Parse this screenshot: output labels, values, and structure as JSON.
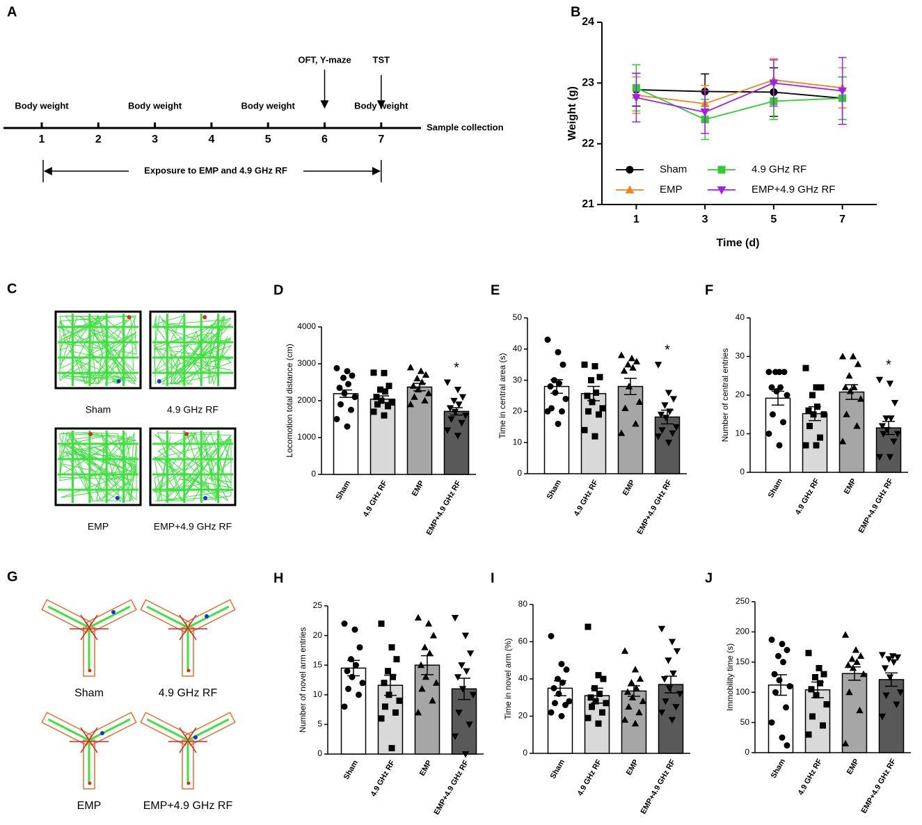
{
  "timeline": {
    "panel": "A",
    "days": [
      1,
      2,
      3,
      4,
      5,
      6,
      7
    ],
    "top_labels": [
      "Body weight",
      null,
      "Body weight",
      null,
      "Body weight",
      null,
      "Body weight"
    ],
    "arrows": [
      null,
      null,
      null,
      null,
      null,
      "OFT, Y-maze",
      "TST"
    ],
    "end_label": "Sample collection",
    "exposure": "Exposure to EMP and 4.9 GHz RF"
  },
  "open_field": {
    "panel": "C",
    "labels": [
      "Sham",
      "4.9 GHz RF",
      "EMP",
      "EMP+4.9 GHz RF"
    ]
  },
  "y_maze": {
    "panel": "G",
    "labels": [
      "Sham",
      "4.9 GHz RF",
      "EMP",
      "EMP+4.9 GHz RF"
    ]
  },
  "chart_data": [
    {
      "type": "line",
      "panel": "B",
      "xlabel": "Time (d)",
      "ylabel": "Weight (g)",
      "x": [
        1,
        3,
        5,
        7
      ],
      "xlim": [
        0,
        8
      ],
      "xticks": [
        1,
        3,
        5,
        7
      ],
      "ylim": [
        21,
        24
      ],
      "yticks": [
        21,
        22,
        23,
        24
      ],
      "series": [
        {
          "name": "Sham",
          "color": "#000000",
          "marker": "circle",
          "values": [
            22.89,
            22.86,
            22.85,
            22.75
          ],
          "errors": [
            0.27,
            0.29,
            0.4,
            0.35
          ]
        },
        {
          "name": "EMP",
          "color": "#f5841f",
          "marker": "triangle",
          "values": [
            22.8,
            22.66,
            23.05,
            22.92
          ],
          "errors": [
            0.3,
            0.3,
            0.35,
            0.33
          ]
        },
        {
          "name": "4.9 GHz RF",
          "color": "#2ecc2e",
          "marker": "square",
          "values": [
            22.92,
            22.4,
            22.7,
            22.75
          ],
          "errors": [
            0.38,
            0.33,
            0.3,
            0.35
          ]
        },
        {
          "name": "EMP+4.9 GHz RF",
          "color": "#a020f0",
          "marker": "triangle-down",
          "values": [
            22.76,
            22.52,
            23.0,
            22.87
          ],
          "errors": [
            0.4,
            0.35,
            0.38,
            0.55
          ]
        }
      ]
    },
    {
      "type": "bar",
      "panel": "D",
      "ylabel": "Locomotion total distance (cm)",
      "categories": [
        "Sham",
        "4.9 GHz RF",
        "EMP",
        "EMP+4.9 GHz RF"
      ],
      "colors": [
        "#ffffff",
        "#d9d9d9",
        "#a6a6a6",
        "#595959"
      ],
      "markers": [
        "circle",
        "square",
        "triangle",
        "triangle-down"
      ],
      "values": [
        2190,
        2040,
        2370,
        1710
      ],
      "errors": [
        100,
        90,
        100,
        100
      ],
      "points": [
        [
          2880,
          2800,
          2680,
          2620,
          2450,
          2350,
          2200,
          2100,
          1900,
          1750,
          1500,
          1300
        ],
        [
          2760,
          2750,
          2400,
          2300,
          2250,
          2100,
          2000,
          1950,
          1900,
          1850,
          1700,
          1600
        ],
        [
          2900,
          2800,
          2700,
          2600,
          2500,
          2400,
          2300,
          2200,
          2100,
          2000,
          1900
        ],
        [
          2500,
          2300,
          2100,
          2000,
          1900,
          1800,
          1700,
          1600,
          1500,
          1400,
          1200,
          1050
        ]
      ],
      "significance": [
        null,
        null,
        null,
        "*"
      ],
      "significance_color": "#e02020",
      "ylim": [
        0,
        4000
      ],
      "yticks": [
        0,
        1000,
        2000,
        3000,
        4000
      ]
    },
    {
      "type": "bar",
      "panel": "E",
      "ylabel": "Time in central area (s)",
      "categories": [
        "Sham",
        "4.9 GHz RF",
        "EMP",
        "EMP+4.9 GHz RF"
      ],
      "colors": [
        "#ffffff",
        "#d9d9d9",
        "#a6a6a6",
        "#595959"
      ],
      "markers": [
        "circle",
        "square",
        "triangle",
        "triangle-down"
      ],
      "values": [
        28,
        25.7,
        28,
        18.2
      ],
      "errors": [
        2.2,
        2.3,
        2.6,
        2.2
      ],
      "points": [
        [
          43,
          39,
          35,
          30,
          29,
          28,
          26,
          24,
          21,
          20,
          20,
          16
        ],
        [
          35,
          34.5,
          31,
          30,
          26,
          25,
          23,
          21,
          20,
          19,
          14,
          12
        ],
        [
          38,
          37,
          36,
          35,
          34,
          33,
          28,
          23,
          21,
          16,
          13
        ],
        [
          35,
          26,
          24,
          22,
          20,
          19,
          18,
          15,
          14,
          13,
          12,
          10
        ]
      ],
      "significance": [
        null,
        null,
        null,
        "*"
      ],
      "significance_color": "#e02020",
      "ylim": [
        0,
        50
      ],
      "yticks": [
        0,
        10,
        20,
        30,
        40,
        50
      ]
    },
    {
      "type": "bar",
      "panel": "F",
      "ylabel": "Number of central entries",
      "categories": [
        "Sham",
        "4.9 GHz RF",
        "EMP",
        "EMP+4.9 GHz RF"
      ],
      "colors": [
        "#ffffff",
        "#d9d9d9",
        "#a6a6a6",
        "#595959"
      ],
      "markers": [
        "circle",
        "square",
        "triangle",
        "triangle-down"
      ],
      "values": [
        19.2,
        15.2,
        20.8,
        11.5
      ],
      "errors": [
        1.8,
        1.8,
        1.9,
        1.7
      ],
      "points": [
        [
          26,
          26,
          26,
          26,
          22,
          22,
          21,
          20,
          15,
          13,
          10,
          7
        ],
        [
          27,
          22,
          22,
          20,
          17,
          16,
          15,
          15,
          12,
          9,
          7,
          7
        ],
        [
          30,
          30,
          28,
          25,
          22,
          22,
          21,
          19,
          15,
          12,
          8
        ],
        [
          24,
          23,
          18,
          14,
          14,
          12,
          11,
          10,
          10,
          8,
          4,
          4
        ]
      ],
      "significance": [
        null,
        null,
        null,
        "*"
      ],
      "significance_color": "#e02020",
      "ylim": [
        0,
        40
      ],
      "yticks": [
        0,
        10,
        20,
        30,
        40
      ]
    },
    {
      "type": "bar",
      "panel": "H",
      "ylabel": "Number of novel arm entries",
      "categories": [
        "Sham",
        "4.9 GHz RF",
        "EMP",
        "EMP+4.9 GHz RF"
      ],
      "colors": [
        "#ffffff",
        "#d9d9d9",
        "#a6a6a6",
        "#595959"
      ],
      "markers": [
        "circle",
        "square",
        "triangle",
        "triangle-down"
      ],
      "values": [
        14.5,
        11.6,
        15,
        11
      ],
      "errors": [
        1.3,
        1.7,
        1.6,
        1.8
      ],
      "points": [
        [
          22,
          21,
          18,
          16,
          15,
          14,
          13,
          12,
          11,
          10,
          8
        ],
        [
          22,
          18,
          16,
          14,
          13,
          12,
          10,
          9,
          8,
          7,
          6,
          1
        ],
        [
          23,
          22,
          20,
          18,
          17,
          15,
          13,
          12,
          11,
          9,
          7
        ],
        [
          23,
          20,
          17,
          15,
          14,
          13,
          11,
          10,
          7,
          5,
          3,
          0
        ]
      ],
      "ylim": [
        0,
        25
      ],
      "yticks": [
        0,
        5,
        10,
        15,
        20,
        25
      ]
    },
    {
      "type": "bar",
      "panel": "I",
      "ylabel": "Time in novel arm (%)",
      "categories": [
        "Sham",
        "4.9 GHz RF",
        "EMP",
        "EMP+4.9 GHz RF"
      ],
      "colors": [
        "#ffffff",
        "#d9d9d9",
        "#a6a6a6",
        "#595959"
      ],
      "markers": [
        "circle",
        "square",
        "triangle",
        "triangle-down"
      ],
      "values": [
        35,
        31,
        33.5,
        37
      ],
      "errors": [
        4,
        4,
        2.8,
        4.5
      ],
      "points": [
        [
          63,
          48,
          45,
          40,
          38,
          35,
          32,
          28,
          27,
          26,
          22,
          20
        ],
        [
          68,
          42,
          40,
          35,
          32,
          30,
          28,
          27,
          25,
          22,
          19,
          16
        ],
        [
          55,
          45,
          40,
          38,
          35,
          33,
          30,
          28,
          25,
          22,
          18,
          16
        ],
        [
          67,
          60,
          55,
          50,
          43,
          40,
          35,
          32,
          28,
          25,
          22,
          18
        ]
      ],
      "ylim": [
        0,
        80
      ],
      "yticks": [
        0,
        20,
        40,
        60,
        80
      ]
    },
    {
      "type": "bar",
      "panel": "J",
      "ylabel": "Immobility time (s)",
      "categories": [
        "Sham",
        "4.9 GHz RF",
        "EMP",
        "EMP+4.9 GHz RF"
      ],
      "colors": [
        "#ffffff",
        "#d9d9d9",
        "#a6a6a6",
        "#595959"
      ],
      "markers": [
        "circle",
        "square",
        "triangle",
        "triangle-down"
      ],
      "values": [
        112,
        104,
        131,
        121
      ],
      "errors": [
        17,
        13,
        11,
        11
      ],
      "points": [
        [
          187,
          180,
          170,
          160,
          150,
          130,
          120,
          110,
          100,
          75,
          50,
          25,
          12
        ],
        [
          165,
          140,
          130,
          125,
          115,
          105,
          95,
          80,
          60,
          45,
          30
        ],
        [
          195,
          170,
          160,
          155,
          150,
          145,
          140,
          130,
          100,
          70,
          15
        ],
        [
          162,
          160,
          158,
          155,
          150,
          140,
          125,
          100,
          95,
          80,
          60
        ]
      ],
      "ylim": [
        0,
        250
      ],
      "yticks": [
        0,
        50,
        100,
        150,
        200,
        250
      ]
    }
  ]
}
